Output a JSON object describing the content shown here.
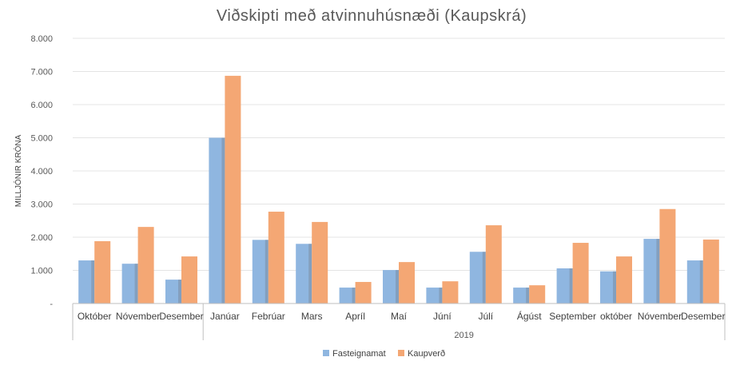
{
  "chart_data": {
    "type": "bar",
    "title": "Viðskipti með atvinnuhúsnæði (Kaupskrá)",
    "ylabel": "MILLJÓNIR KRÓNA",
    "xlabel": "",
    "ylim": [
      0,
      8000
    ],
    "yticks": [
      {
        "value": 0,
        "label": "-"
      },
      {
        "value": 1000,
        "label": "1.000"
      },
      {
        "value": 2000,
        "label": "2.000"
      },
      {
        "value": 3000,
        "label": "3.000"
      },
      {
        "value": 4000,
        "label": "4.000"
      },
      {
        "value": 5000,
        "label": "5.000"
      },
      {
        "value": 6000,
        "label": "6.000"
      },
      {
        "value": 7000,
        "label": "7.000"
      },
      {
        "value": 8000,
        "label": "8.000"
      }
    ],
    "grid": true,
    "legend_position": "bottom",
    "categories": [
      "Október",
      "Nóvember",
      "Desember",
      "Janúar",
      "Febrúar",
      "Mars",
      "Apríl",
      "Maí",
      "Júní",
      "Júlí",
      "Ágúst",
      "September",
      "október",
      "Nóvember",
      "Desember"
    ],
    "groups": [
      {
        "label": "",
        "start": 0,
        "end": 2
      },
      {
        "label": "2019",
        "start": 3,
        "end": 14
      }
    ],
    "series": [
      {
        "name": "Fasteignamat",
        "color": "#8fb6e0",
        "values": [
          1300,
          1200,
          720,
          5000,
          1920,
          1800,
          480,
          1010,
          480,
          1560,
          480,
          1060,
          970,
          1950,
          1300
        ]
      },
      {
        "name": "Kaupverð",
        "color": "#f4a774",
        "values": [
          1880,
          2310,
          1420,
          6870,
          2770,
          2460,
          650,
          1250,
          670,
          2360,
          550,
          1830,
          1420,
          2850,
          1930
        ]
      }
    ]
  }
}
